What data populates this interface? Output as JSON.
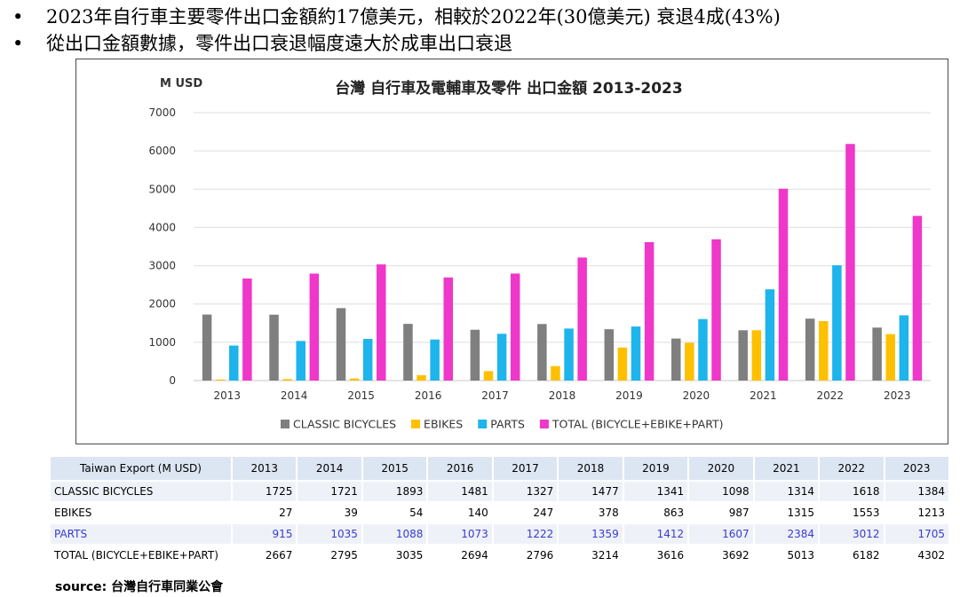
{
  "bullets": [
    "2023年自行車主要零件出口金額約17億美元，相較於2022年(30億美元) 衰退4成(43%)",
    "從出口金額數據，零件出口衰退幅度遠大於成車出口衰退"
  ],
  "bullet_symbol": "•",
  "chart_data": {
    "type": "bar",
    "title": "台灣 自行車及電輔車及零件 出口金額 2013-2023",
    "ylabel": "M USD",
    "xlabel": "",
    "ylim": [
      0,
      7000
    ],
    "yticks": [
      0,
      1000,
      2000,
      3000,
      4000,
      5000,
      6000,
      7000
    ],
    "grid": true,
    "legend_position": "bottom",
    "categories": [
      "2013",
      "2014",
      "2015",
      "2016",
      "2017",
      "2018",
      "2019",
      "2020",
      "2021",
      "2022",
      "2023"
    ],
    "series": [
      {
        "name": "CLASSIC BICYCLES",
        "color": "#7f7f7f",
        "values": [
          1725,
          1721,
          1893,
          1481,
          1327,
          1477,
          1341,
          1098,
          1314,
          1618,
          1384
        ]
      },
      {
        "name": "EBIKES",
        "color": "#ffc000",
        "values": [
          27,
          39,
          54,
          140,
          247,
          378,
          863,
          987,
          1315,
          1553,
          1213
        ]
      },
      {
        "name": "PARTS",
        "color": "#1eb4ec",
        "values": [
          915,
          1035,
          1088,
          1073,
          1222,
          1359,
          1412,
          1607,
          2384,
          3012,
          1705
        ]
      },
      {
        "name": "TOTAL (BICYCLE+EBIKE+PART)",
        "color": "#ef37c9",
        "values": [
          2667,
          2795,
          3035,
          2694,
          2796,
          3214,
          3616,
          3692,
          5013,
          6182,
          4302
        ]
      }
    ]
  },
  "table": {
    "header_label": "Taiwan Export (M USD)",
    "years": [
      "2013",
      "2014",
      "2015",
      "2016",
      "2017",
      "2018",
      "2019",
      "2020",
      "2021",
      "2022",
      "2023"
    ],
    "rows": [
      {
        "label": "CLASSIC BICYCLES",
        "values": [
          "1725",
          "1721",
          "1893",
          "1481",
          "1327",
          "1477",
          "1341",
          "1098",
          "1314",
          "1618",
          "1384"
        ]
      },
      {
        "label": "EBIKES",
        "values": [
          "27",
          "39",
          "54",
          "140",
          "247",
          "378",
          "863",
          "987",
          "1315",
          "1553",
          "1213"
        ]
      },
      {
        "label": "PARTS",
        "values": [
          "915",
          "1035",
          "1088",
          "1073",
          "1222",
          "1359",
          "1412",
          "1607",
          "2384",
          "3012",
          "1705"
        ]
      },
      {
        "label": "TOTAL (BICYCLE+EBIKE+PART)",
        "values": [
          "2667",
          "2795",
          "3035",
          "2694",
          "2796",
          "3214",
          "3616",
          "3692",
          "5013",
          "6182",
          "4302"
        ]
      }
    ]
  },
  "source": "source: 台灣自行車同業公會"
}
